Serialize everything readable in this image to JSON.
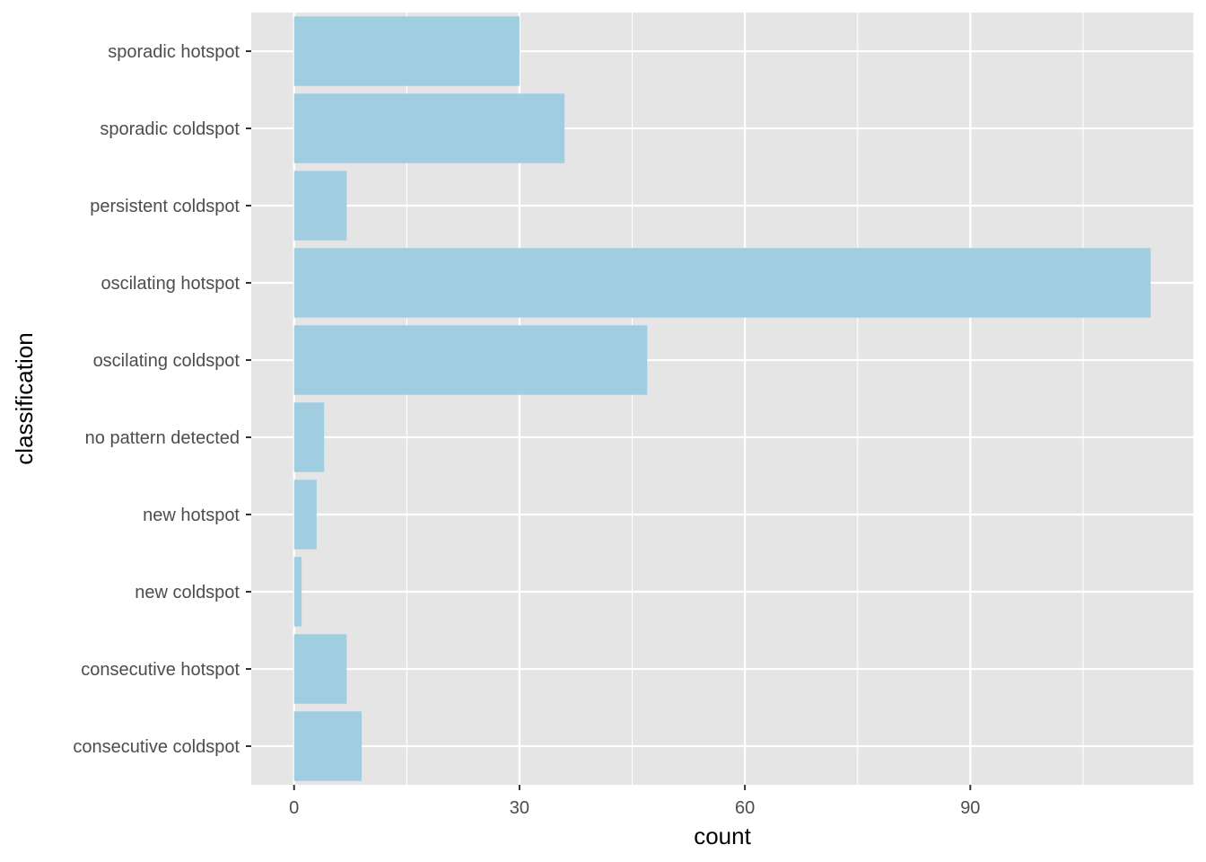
{
  "chart_data": {
    "type": "bar",
    "orientation": "horizontal",
    "categories": [
      "sporadic hotspot",
      "sporadic coldspot",
      "persistent coldspot",
      "oscilating hotspot",
      "oscilating coldspot",
      "no pattern detected",
      "new hotspot",
      "new coldspot",
      "consecutive hotspot",
      "consecutive coldspot"
    ],
    "values": [
      30,
      36,
      7,
      114,
      47,
      4,
      3,
      1,
      7,
      9
    ],
    "xlabel": "count",
    "ylabel": "classification",
    "xlim": [
      -5.7,
      119.7
    ],
    "xticks": [
      0,
      30,
      60,
      90
    ],
    "grid": true,
    "legend": "none",
    "colors": {
      "bar": "#a0cee0",
      "panel": "#e5e5e5",
      "grid": "#ffffff"
    }
  }
}
